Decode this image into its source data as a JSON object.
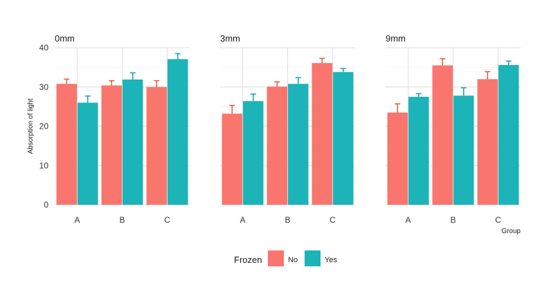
{
  "chart_data": {
    "type": "bar",
    "facet_label": "",
    "panels": [
      "0mm",
      "3mm",
      "9mm"
    ],
    "categories": [
      "A",
      "B",
      "C"
    ],
    "xlabel": "Group",
    "ylabel": "Absorption of light",
    "ylim": [
      0,
      40
    ],
    "yticks": [
      0,
      10,
      20,
      30,
      40
    ],
    "grid": true,
    "legend": {
      "title": "Frozen",
      "placement": "bottom",
      "entries": [
        "No",
        "Yes"
      ]
    },
    "colors": {
      "No": "#F8766D",
      "Yes": "#1CB4B8",
      "No_error": "#E4573C",
      "Yes_error": "#13A3AB"
    },
    "series": [
      {
        "name": "No",
        "panels": {
          "0mm": {
            "values": [
              30.8,
              30.4,
              30.0
            ],
            "err": [
              1.2,
              1.2,
              1.6
            ]
          },
          "3mm": {
            "values": [
              23.2,
              30.1,
              36.1
            ],
            "err": [
              2.1,
              1.2,
              1.2
            ]
          },
          "9mm": {
            "values": [
              23.5,
              35.5,
              32.0
            ],
            "err": [
              2.2,
              1.7,
              1.9
            ]
          }
        }
      },
      {
        "name": "Yes",
        "panels": {
          "0mm": {
            "values": [
              26.0,
              31.9,
              37.1
            ],
            "err": [
              1.7,
              1.7,
              1.4
            ]
          },
          "3mm": {
            "values": [
              26.4,
              30.8,
              33.8
            ],
            "err": [
              1.8,
              1.6,
              0.9
            ]
          },
          "9mm": {
            "values": [
              27.5,
              27.8,
              35.6
            ],
            "err": [
              0.8,
              2.0,
              1.0
            ]
          }
        }
      }
    ]
  }
}
